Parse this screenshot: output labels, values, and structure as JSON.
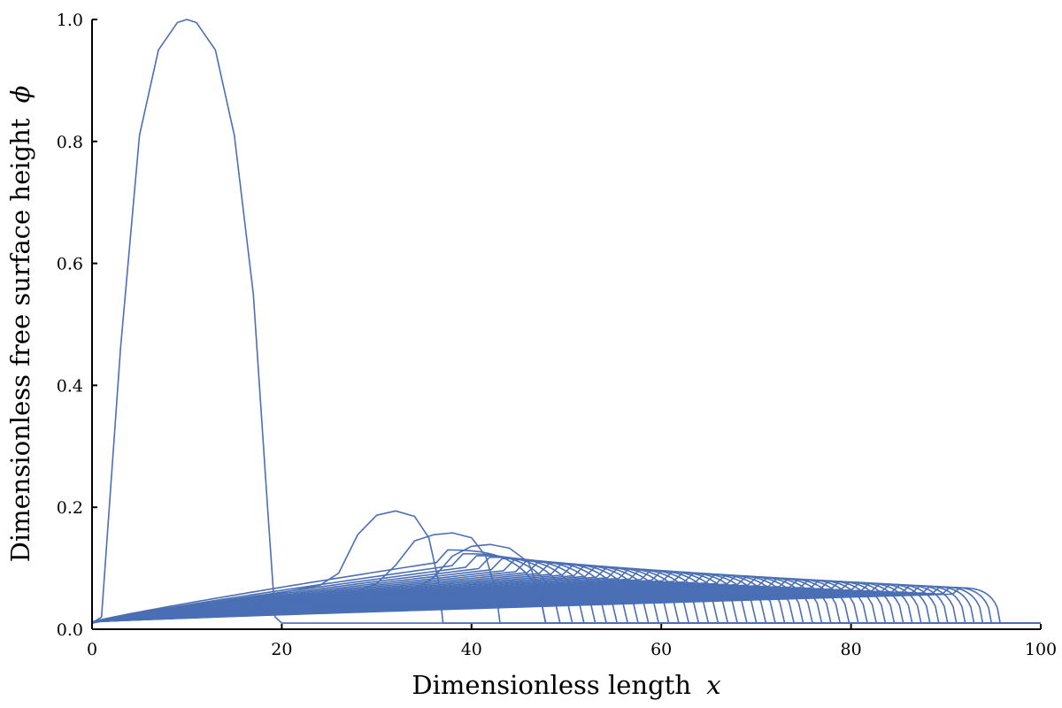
{
  "chart_data": {
    "type": "line",
    "title": "",
    "xlabel": "Dimensionless length",
    "xlabel_var": "x",
    "ylabel": "Dimensionless free surface height",
    "ylabel_var": "ϕ",
    "xlim": [
      0,
      100
    ],
    "ylim": [
      0,
      1.0
    ],
    "x_ticks": [
      "0",
      "20",
      "40",
      "60",
      "80",
      "100"
    ],
    "y_ticks": [
      "0.0",
      "0.2",
      "0.4",
      "0.6",
      "0.8",
      "1.0"
    ],
    "x_tick_values": [
      0,
      20,
      40,
      60,
      80,
      100
    ],
    "y_tick_values": [
      0,
      0.2,
      0.4,
      0.6,
      0.8,
      1.0
    ],
    "grid": false,
    "legend": "none",
    "line_color": "#4a6fb5",
    "baseline": 0.01,
    "series": [
      {
        "x": [
          0,
          1,
          3,
          5,
          7,
          9,
          10,
          11,
          13,
          15,
          17,
          18.5,
          19.3,
          20,
          100
        ],
        "y": [
          0.01,
          0.02,
          0.46,
          0.81,
          0.95,
          0.995,
          1.0,
          0.995,
          0.95,
          0.81,
          0.55,
          0.2,
          0.02,
          0.01,
          0.01
        ]
      },
      {
        "x": [
          0,
          1,
          5,
          10,
          15,
          20,
          24,
          26,
          28,
          30,
          32,
          34,
          35.5,
          36.5,
          37,
          100
        ],
        "y": [
          0.01,
          0.015,
          0.028,
          0.038,
          0.048,
          0.06,
          0.072,
          0.092,
          0.155,
          0.187,
          0.194,
          0.185,
          0.15,
          0.08,
          0.01,
          0.01
        ]
      },
      {
        "x": [
          0,
          1,
          10,
          20,
          25,
          28,
          30,
          32,
          34,
          36,
          38,
          40,
          41.5,
          42.6,
          43,
          100
        ],
        "y": [
          0.01,
          0.014,
          0.028,
          0.045,
          0.055,
          0.063,
          0.075,
          0.105,
          0.145,
          0.155,
          0.158,
          0.15,
          0.12,
          0.06,
          0.01,
          0.01
        ]
      },
      {
        "x": [
          0,
          1,
          10,
          20,
          30,
          34,
          36,
          38,
          40,
          42,
          44,
          46,
          47.2,
          47.8,
          100
        ],
        "y": [
          0.01,
          0.013,
          0.025,
          0.04,
          0.055,
          0.065,
          0.085,
          0.12,
          0.136,
          0.139,
          0.133,
          0.11,
          0.06,
          0.01,
          0.01
        ]
      }
    ],
    "family": {
      "count": 48,
      "front_start": 47.8,
      "front_end": 95.7,
      "comment_free": true
    }
  }
}
